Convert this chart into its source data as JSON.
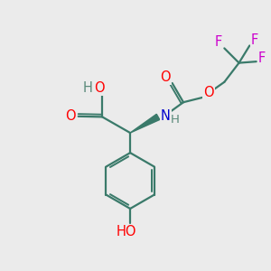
{
  "bg_color": "#ebebeb",
  "bond_color": "#3a7a6a",
  "atom_colors": {
    "O": "#ff0000",
    "N": "#0000cc",
    "F": "#cc00cc",
    "H": "#5a8a7a",
    "C": "#3a7a6a"
  },
  "figsize": [
    3.0,
    3.0
  ],
  "dpi": 100,
  "lw": 1.6,
  "fs": 10.5
}
